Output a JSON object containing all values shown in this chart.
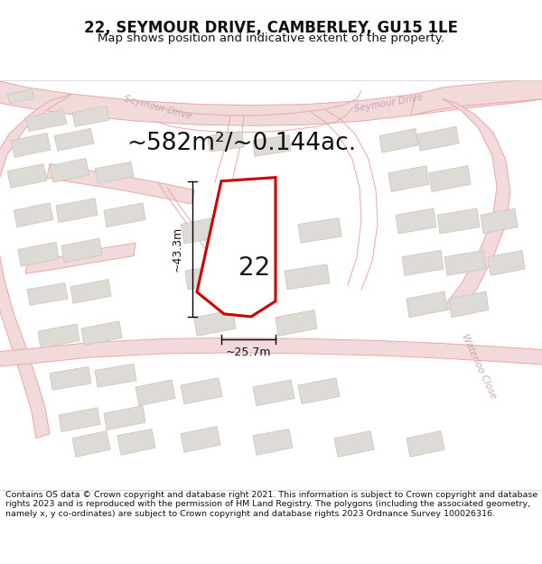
{
  "title": "22, SEYMOUR DRIVE, CAMBERLEY, GU15 1LE",
  "subtitle": "Map shows position and indicative extent of the property.",
  "area_text": "~582m²/~0.144ac.",
  "dim_h": "~43.3m",
  "dim_w": "~25.7m",
  "label": "22",
  "footer": "Contains OS data © Crown copyright and database right 2021. This information is subject to Crown copyright and database rights 2023 and is reproduced with the permission of HM Land Registry. The polygons (including the associated geometry, namely x, y co-ordinates) are subject to Crown copyright and database rights 2023 Ordnance Survey 100026316.",
  "bg_color": "#f7f6f4",
  "map_bg": "#f7f6f4",
  "road_fill": "#f2dada",
  "road_edge": "#e8a8a8",
  "road_edge_lw": 0.7,
  "building_fill": "#dedad5",
  "building_edge": "#ccc8c2",
  "building_lw": 0.6,
  "plot_fill": "#ffffff",
  "plot_edge": "#cc0000",
  "plot_lw": 2.2,
  "title_fontsize": 12,
  "subtitle_fontsize": 9.5,
  "area_fontsize": 19,
  "label_fontsize": 20,
  "footer_fontsize": 6.8,
  "road_label_color": "#c8a8a8",
  "road_label_size": 7.5,
  "dim_fontsize": 9
}
